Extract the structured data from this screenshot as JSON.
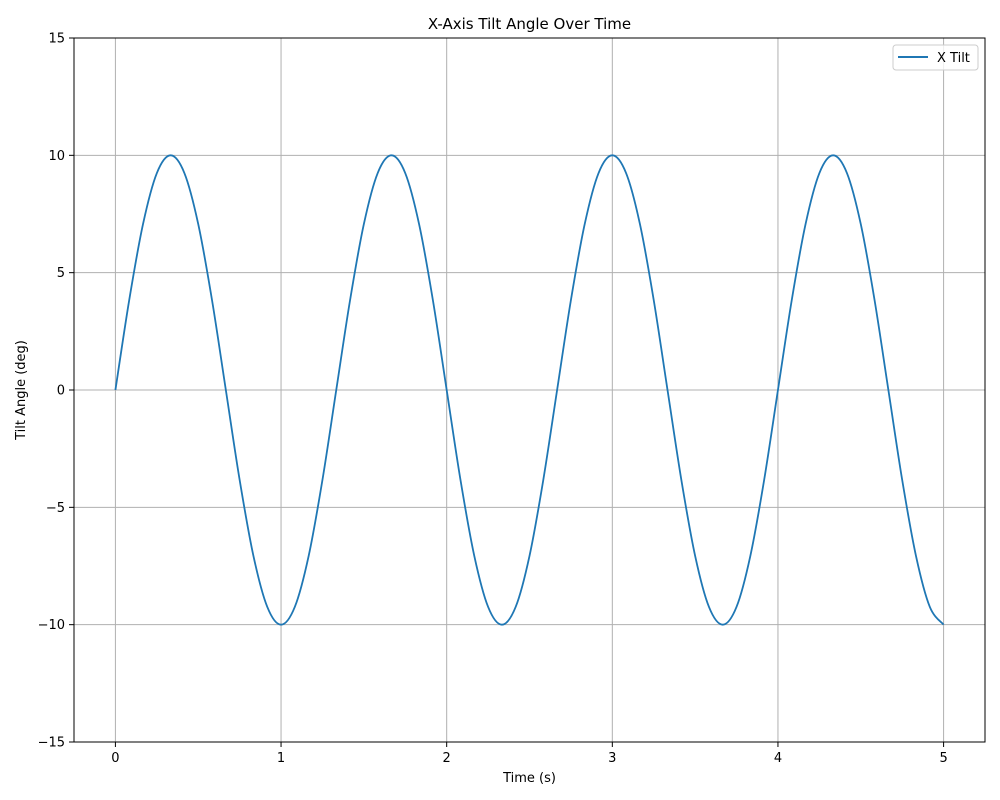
{
  "chart_data": {
    "type": "line",
    "title": "X-Axis Tilt Angle Over Time",
    "xlabel": "Time (s)",
    "ylabel": "Tilt Angle (deg)",
    "xlim": [
      -0.25,
      5.25
    ],
    "ylim": [
      -15,
      15
    ],
    "xticks": [
      0,
      1,
      2,
      3,
      4,
      5
    ],
    "xtick_labels": [
      "0",
      "1",
      "2",
      "3",
      "4",
      "5"
    ],
    "yticks": [
      -15,
      -10,
      -5,
      0,
      5,
      10,
      15
    ],
    "ytick_labels": [
      "−15",
      "−10",
      "−5",
      "0",
      "5",
      "10",
      "15"
    ],
    "grid": true,
    "legend_position": "top-right",
    "series": [
      {
        "name": "X Tilt",
        "color": "#1f77b4",
        "x": [
          0,
          0.0833,
          0.1667,
          0.25,
          0.3333,
          0.4167,
          0.5,
          0.5833,
          0.6667,
          0.75,
          0.8333,
          0.9167,
          1.0,
          1.0833,
          1.1667,
          1.25,
          1.3333,
          1.4167,
          1.5,
          1.5833,
          1.6667,
          1.75,
          1.8333,
          1.9167,
          2.0,
          2.0833,
          2.1667,
          2.25,
          2.3333,
          2.4167,
          2.5,
          2.5833,
          2.6667,
          2.75,
          2.8333,
          2.9167,
          3.0,
          3.0833,
          3.1667,
          3.25,
          3.3333,
          3.4167,
          3.5,
          3.5833,
          3.6667,
          3.75,
          3.8333,
          3.9167,
          4.0,
          4.0833,
          4.1667,
          4.25,
          4.3333,
          4.4167,
          4.5,
          4.5833,
          4.6667,
          4.75,
          4.8333,
          4.9167,
          5.0
        ],
        "y": [
          0,
          3.83,
          7.07,
          9.24,
          10.0,
          9.24,
          7.07,
          3.83,
          0,
          -3.83,
          -7.07,
          -9.24,
          -10.0,
          -9.24,
          -7.07,
          -3.83,
          0,
          3.83,
          7.07,
          9.24,
          10.0,
          9.24,
          7.07,
          3.83,
          0,
          -3.83,
          -7.07,
          -9.24,
          -10.0,
          -9.24,
          -7.07,
          -3.83,
          0,
          3.83,
          7.07,
          9.24,
          10.0,
          9.24,
          7.07,
          3.83,
          0,
          -3.83,
          -7.07,
          -9.24,
          -10.0,
          -9.24,
          -7.07,
          -3.83,
          0,
          3.83,
          7.07,
          9.24,
          10.0,
          9.24,
          7.07,
          3.83,
          0,
          -3.83,
          -7.07,
          -9.24,
          -10.0
        ]
      }
    ]
  }
}
